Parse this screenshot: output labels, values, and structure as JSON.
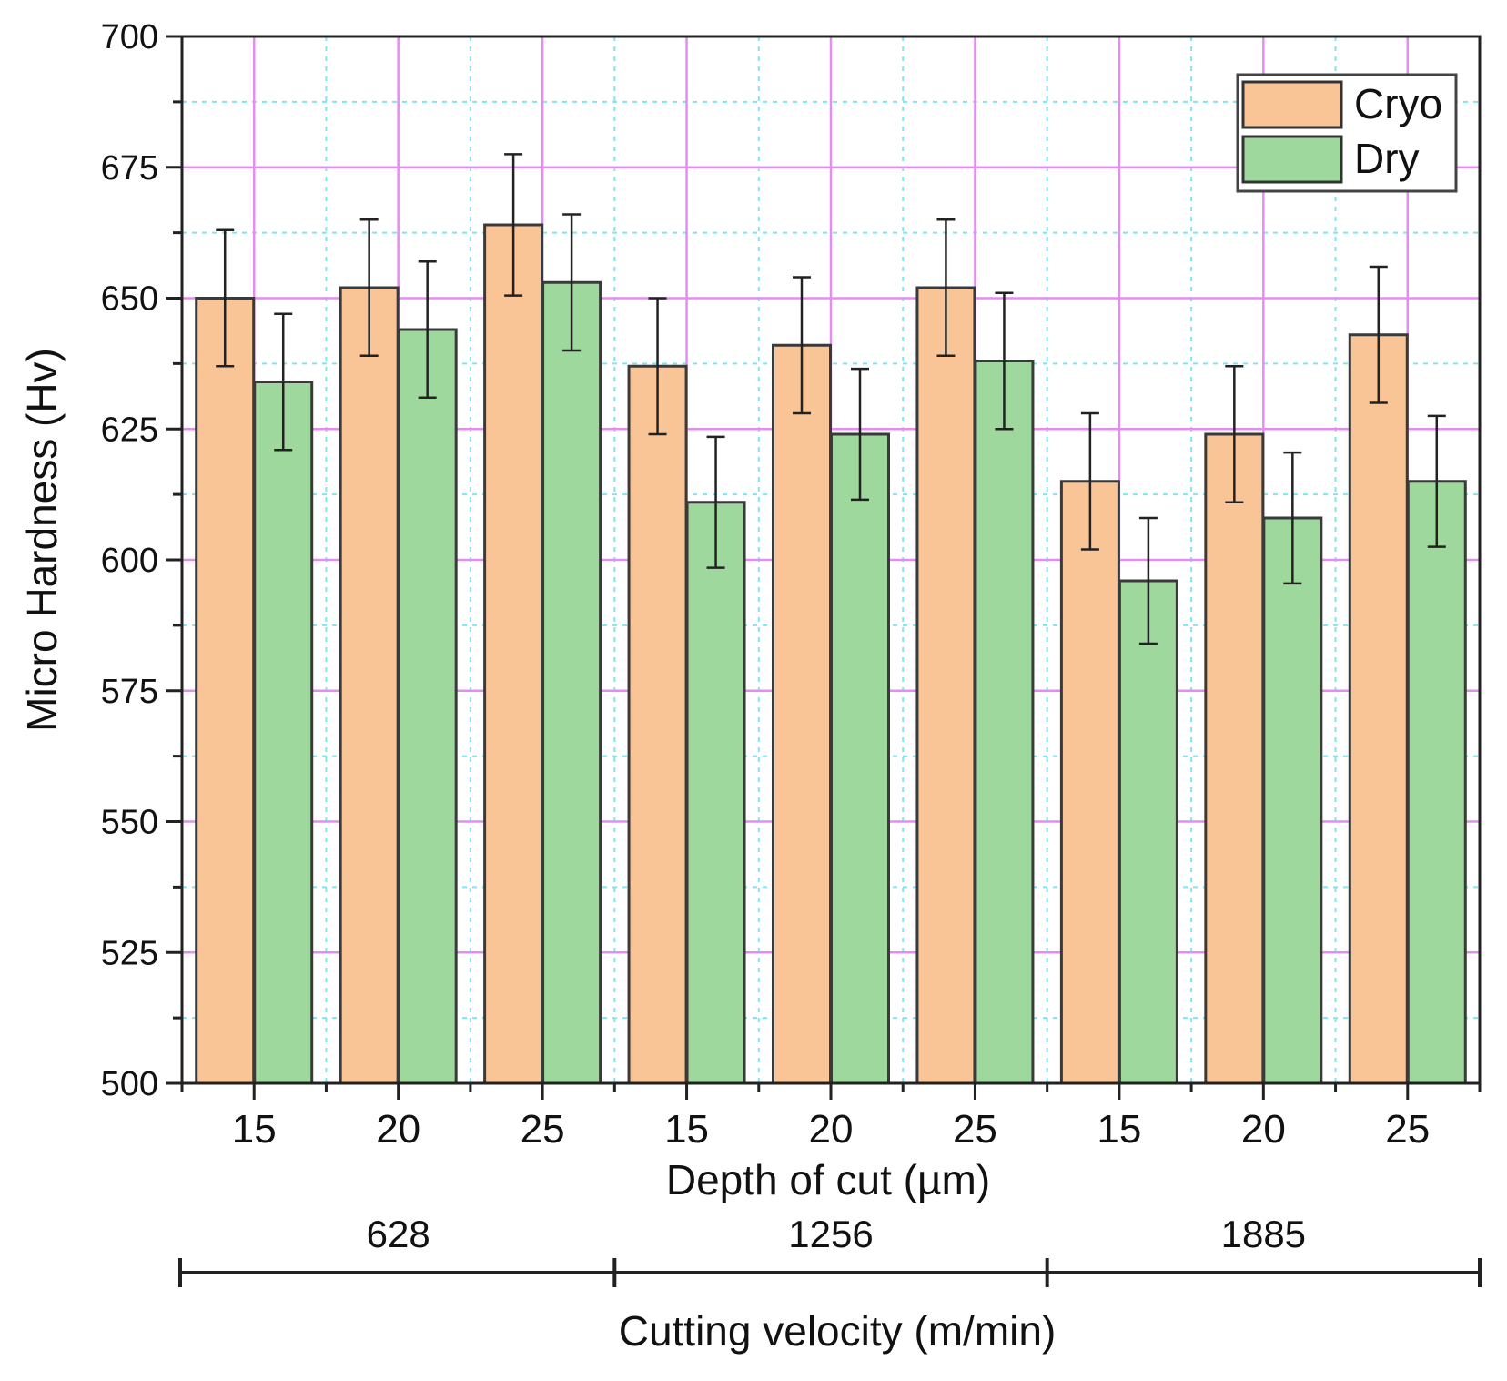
{
  "chart_data": {
    "type": "bar",
    "title": "",
    "xlabel": "Depth of cut (µm)",
    "ylabel": "Micro Hardness (Hv)",
    "secondary_xlabel": "Cutting velocity (m/min)",
    "ylim": [
      500,
      700
    ],
    "yticks": [
      500,
      525,
      550,
      575,
      600,
      625,
      650,
      675,
      700
    ],
    "categories": [
      "15",
      "20",
      "25",
      "15",
      "20",
      "25",
      "15",
      "20",
      "25"
    ],
    "groups": [
      {
        "label": "628",
        "category_indices": [
          0,
          1,
          2
        ]
      },
      {
        "label": "1256",
        "category_indices": [
          3,
          4,
          5
        ]
      },
      {
        "label": "1885",
        "category_indices": [
          6,
          7,
          8
        ]
      }
    ],
    "series": [
      {
        "name": "Cryo",
        "color": "#F9C596",
        "values": [
          650,
          652,
          664,
          637,
          641,
          652,
          615,
          624,
          643
        ],
        "errors": [
          13,
          13,
          13.5,
          13,
          13,
          13,
          13,
          13,
          13
        ]
      },
      {
        "name": "Dry",
        "color": "#9ED89C",
        "values": [
          634,
          644,
          653,
          611,
          624,
          638,
          596,
          608,
          615
        ],
        "errors": [
          13,
          13,
          13,
          12.5,
          12.5,
          13,
          12,
          12.5,
          12.5
        ]
      }
    ],
    "legend": {
      "position": "top-right",
      "entries": [
        "Cryo",
        "Dry"
      ]
    },
    "grid": {
      "major": true,
      "minor": true,
      "major_color": "#E58CF2",
      "minor_color": "#7FE6F0"
    }
  }
}
